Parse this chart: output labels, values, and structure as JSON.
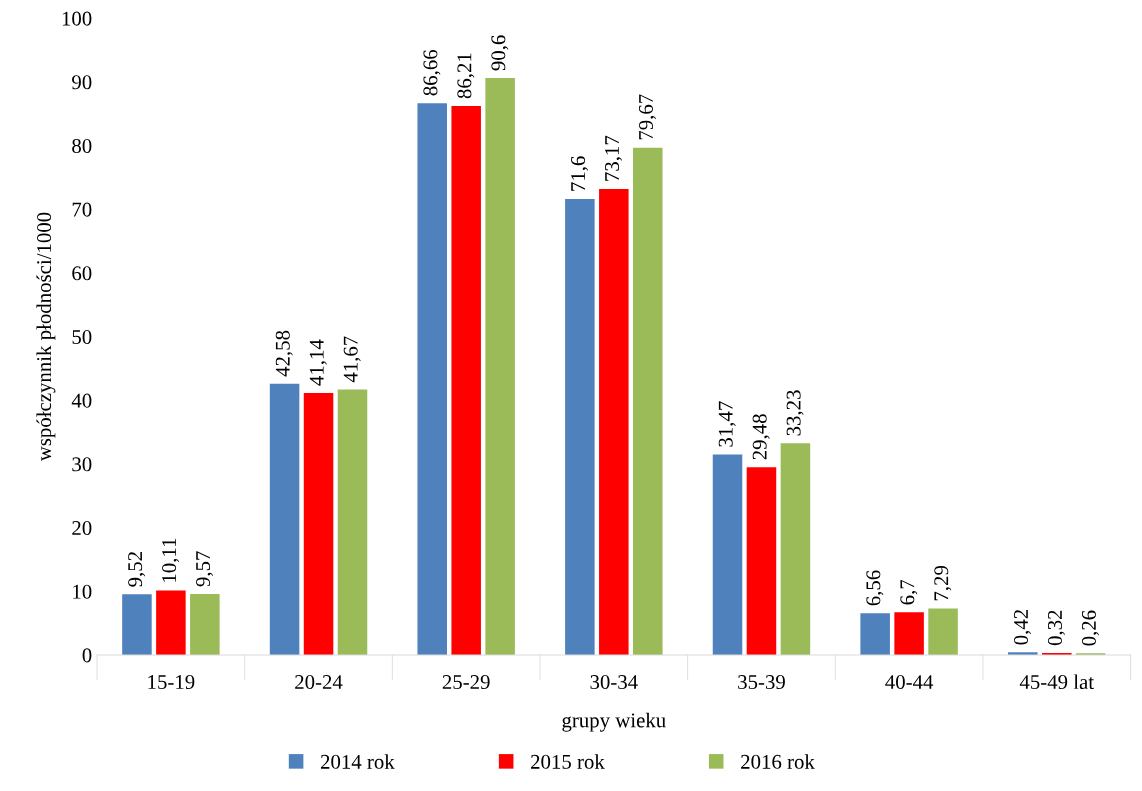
{
  "chart_data": {
    "type": "bar",
    "xlabel": "grupy wieku",
    "ylabel": "współczynnik płodności/1000",
    "categories": [
      "15-19",
      "20-24",
      "25-29",
      "30-34",
      "35-39",
      "40-44",
      "45-49 lat"
    ],
    "series": [
      {
        "name": "2014 rok",
        "color": "#4f81bd",
        "values": [
          9.52,
          42.58,
          86.66,
          71.6,
          31.47,
          6.56,
          0.42
        ],
        "value_labels": [
          "9,52",
          "42,58",
          "86,66",
          "71,6",
          "31,47",
          "6,56",
          "0,42"
        ]
      },
      {
        "name": "2015 rok",
        "color": "#ff0000",
        "values": [
          10.11,
          41.14,
          86.21,
          73.17,
          29.48,
          6.7,
          0.32
        ],
        "value_labels": [
          "10,11",
          "41,14",
          "86,21",
          "73,17",
          "29,48",
          "6,7",
          "0,32"
        ]
      },
      {
        "name": "2016 rok",
        "color": "#9bbb59",
        "values": [
          9.57,
          41.67,
          90.6,
          79.67,
          33.23,
          7.29,
          0.26
        ],
        "value_labels": [
          "9,57",
          "41,67",
          "90,6",
          "79,67",
          "33,23",
          "7,29",
          "0,26"
        ]
      }
    ],
    "ylim": [
      0,
      100
    ],
    "yticks": [
      0,
      10,
      20,
      30,
      40,
      50,
      60,
      70,
      80,
      90,
      100
    ],
    "grid": false,
    "legend": "bottom"
  }
}
